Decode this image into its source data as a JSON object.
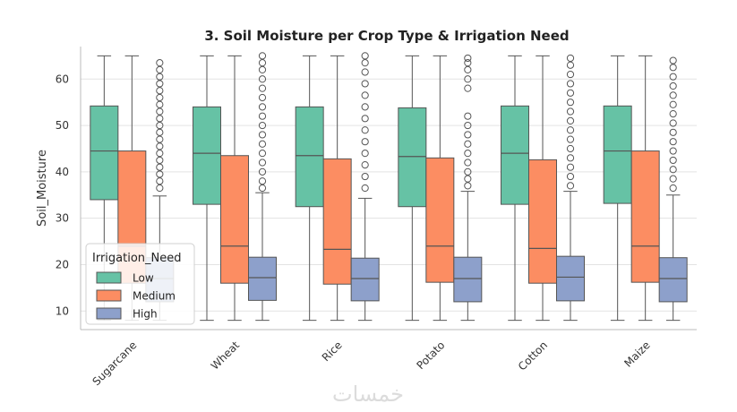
{
  "chart_data": {
    "type": "box",
    "title": "3. Soil Moisture per Crop Type & Irrigation Need",
    "xlabel": "",
    "ylabel": "Soil_Moisture",
    "ylim": [
      6,
      67
    ],
    "yticks": [
      10,
      20,
      30,
      40,
      50,
      60
    ],
    "grid": true,
    "legend_title": "Irrigation_Need",
    "legend_position": "lower-left",
    "categories": [
      "Sugarcane",
      "Wheat",
      "Rice",
      "Potato",
      "Cotton",
      "Maize"
    ],
    "series": [
      {
        "name": "Low",
        "color": "#66c2a5",
        "boxes": [
          {
            "whisker_low": 8,
            "q1": 34,
            "median": 44.5,
            "q3": 54.2,
            "whisker_high": 65,
            "outliers": []
          },
          {
            "whisker_low": 8,
            "q1": 33,
            "median": 44,
            "q3": 54,
            "whisker_high": 65,
            "outliers": []
          },
          {
            "whisker_low": 8,
            "q1": 32.5,
            "median": 43.5,
            "q3": 54,
            "whisker_high": 65,
            "outliers": []
          },
          {
            "whisker_low": 8,
            "q1": 32.5,
            "median": 43.3,
            "q3": 53.8,
            "whisker_high": 65,
            "outliers": []
          },
          {
            "whisker_low": 8,
            "q1": 33,
            "median": 44,
            "q3": 54.2,
            "whisker_high": 65,
            "outliers": []
          },
          {
            "whisker_low": 8,
            "q1": 33.2,
            "median": 44.5,
            "q3": 54.2,
            "whisker_high": 65,
            "outliers": []
          }
        ]
      },
      {
        "name": "Medium",
        "color": "#fc8d62",
        "boxes": [
          {
            "whisker_low": 8,
            "q1": 16,
            "median": 24,
            "q3": 44.5,
            "whisker_high": 65,
            "outliers": []
          },
          {
            "whisker_low": 8,
            "q1": 16,
            "median": 24,
            "q3": 43.5,
            "whisker_high": 65,
            "outliers": []
          },
          {
            "whisker_low": 8,
            "q1": 15.8,
            "median": 23.3,
            "q3": 42.8,
            "whisker_high": 65,
            "outliers": []
          },
          {
            "whisker_low": 8,
            "q1": 16.2,
            "median": 24,
            "q3": 43,
            "whisker_high": 65,
            "outliers": []
          },
          {
            "whisker_low": 8,
            "q1": 16,
            "median": 23.5,
            "q3": 42.6,
            "whisker_high": 65,
            "outliers": []
          },
          {
            "whisker_low": 8,
            "q1": 16.2,
            "median": 24,
            "q3": 44.5,
            "whisker_high": 65,
            "outliers": []
          }
        ]
      },
      {
        "name": "High",
        "color": "#8da0cb",
        "boxes": [
          {
            "whisker_low": 8,
            "q1": 12,
            "median": 17,
            "q3": 21.5,
            "whisker_high": 34.8,
            "outliers": [
              36.5,
              38,
              39.5,
              41,
              42.5,
              44,
              45.5,
              47,
              48.5,
              50,
              51.5,
              53,
              54.5,
              56,
              57.5,
              59,
              60.5,
              62,
              63.5
            ]
          },
          {
            "whisker_low": 8,
            "q1": 12.3,
            "median": 17.2,
            "q3": 21.6,
            "whisker_high": 35.5,
            "outliers": [
              36.5,
              38,
              40,
              42,
              44,
              46,
              48,
              50,
              52,
              54,
              56,
              58,
              60,
              62,
              63.5,
              65
            ]
          },
          {
            "whisker_low": 8,
            "q1": 12.2,
            "median": 17,
            "q3": 21.4,
            "whisker_high": 34.3,
            "outliers": [
              36.5,
              39,
              41.5,
              44,
              46.5,
              49,
              51.5,
              54,
              56.5,
              59,
              61.5,
              63.5,
              65
            ]
          },
          {
            "whisker_low": 8,
            "q1": 12,
            "median": 17,
            "q3": 21.6,
            "whisker_high": 35.8,
            "outliers": [
              37,
              38.5,
              40,
              42,
              44,
              46,
              48,
              50,
              52,
              58,
              60,
              62,
              63.5,
              64.5
            ]
          },
          {
            "whisker_low": 8,
            "q1": 12.2,
            "median": 17.3,
            "q3": 21.8,
            "whisker_high": 35.8,
            "outliers": [
              37,
              39,
              41,
              43,
              45,
              47,
              49,
              51,
              53,
              55,
              57,
              59,
              61,
              63,
              64.5
            ]
          },
          {
            "whisker_low": 8,
            "q1": 12,
            "median": 17,
            "q3": 21.5,
            "whisker_high": 35,
            "outliers": [
              36.5,
              38.5,
              40.5,
              42.5,
              44.5,
              46.5,
              48.5,
              50.5,
              52.5,
              54.5,
              56.5,
              58.5,
              60.5,
              62.5,
              64
            ]
          }
        ]
      }
    ]
  },
  "watermark": "خمسات"
}
